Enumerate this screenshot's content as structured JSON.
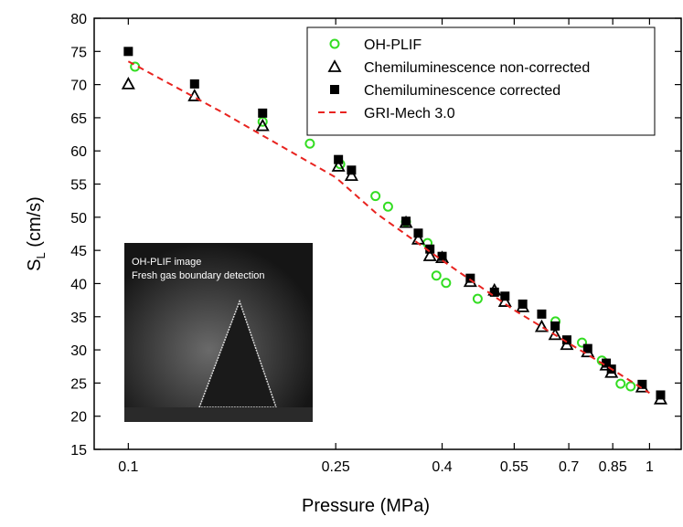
{
  "chart_data": {
    "type": "scatter",
    "xlabel": "Pressure (MPa)",
    "ylabel": [
      "S",
      "L",
      " (cm/s)"
    ],
    "xscale": "log",
    "xlim": [
      0.086,
      1.15
    ],
    "ylim": [
      15,
      80
    ],
    "xticks": [
      0.1,
      0.25,
      0.4,
      0.55,
      0.7,
      0.85,
      1
    ],
    "yticks": [
      15,
      20,
      25,
      30,
      35,
      40,
      45,
      50,
      55,
      60,
      65,
      70,
      75,
      80
    ],
    "legend": "top-right",
    "inset_text": [
      "OH-PLIF image",
      "Fresh gas boundary detection"
    ],
    "series": [
      {
        "name": "OH-PLIF",
        "color": "#33dd22",
        "marker": "circle",
        "x": [
          0.103,
          0.181,
          0.223,
          0.255,
          0.298,
          0.315,
          0.341,
          0.375,
          0.39,
          0.407,
          0.468,
          0.66,
          0.742,
          0.81,
          0.88,
          0.92
        ],
        "values": [
          72.7,
          64.4,
          61.1,
          58.0,
          53.2,
          51.6,
          49.3,
          46.1,
          41.2,
          40.1,
          37.7,
          34.3,
          31.1,
          28.4,
          24.9,
          24.5
        ]
      },
      {
        "name": "Chemiluminescence non-corrected",
        "color": "#000000",
        "marker": "triangle",
        "x": [
          0.1,
          0.134,
          0.181,
          0.253,
          0.268,
          0.341,
          0.36,
          0.379,
          0.4,
          0.453,
          0.504,
          0.528,
          0.571,
          0.621,
          0.659,
          0.694,
          0.761,
          0.826,
          0.845,
          0.968,
          1.05
        ],
        "values": [
          70.1,
          68.3,
          63.8,
          57.7,
          56.3,
          49.2,
          46.7,
          44.2,
          43.9,
          40.3,
          39.0,
          37.3,
          36.5,
          33.5,
          32.3,
          30.8,
          29.7,
          27.7,
          26.6,
          24.4,
          22.6
        ]
      },
      {
        "name": "Chemiluminescence corrected",
        "color": "#000000",
        "marker": "square",
        "x": [
          0.1,
          0.134,
          0.181,
          0.253,
          0.268,
          0.341,
          0.36,
          0.379,
          0.4,
          0.453,
          0.504,
          0.528,
          0.571,
          0.621,
          0.659,
          0.694,
          0.761,
          0.826,
          0.845,
          0.968,
          1.05
        ],
        "values": [
          75.0,
          70.1,
          65.7,
          58.7,
          57.1,
          49.4,
          47.6,
          45.2,
          44.1,
          40.8,
          38.7,
          38.1,
          36.9,
          35.4,
          33.6,
          31.5,
          30.2,
          28.0,
          27.1,
          24.8,
          23.2
        ]
      },
      {
        "name": "GRI-Mech 3.0",
        "color": "#e8231f",
        "marker": "dashed-line",
        "x": [
          0.1,
          0.15,
          0.25,
          0.3,
          0.4,
          0.55,
          0.7,
          0.85,
          1
        ],
        "values": [
          73.5,
          66,
          56,
          50.5,
          43.5,
          36,
          31,
          27,
          23.5
        ]
      }
    ]
  }
}
